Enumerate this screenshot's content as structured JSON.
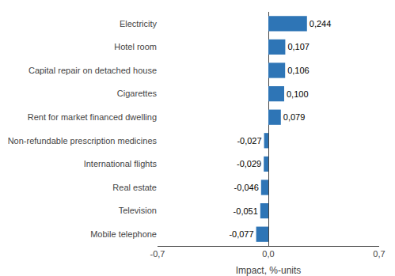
{
  "chart_data": {
    "type": "bar",
    "orientation": "horizontal",
    "categories": [
      "Mobile telephone",
      "Television",
      "Real estate",
      "International flights",
      "Non-refundable prescription medicines",
      "Rent for market financed dwelling",
      "Cigarettes",
      "Capital repair on detached house",
      "Hotel room",
      "Electricity"
    ],
    "values": [
      -0.077,
      -0.051,
      -0.046,
      -0.029,
      -0.027,
      0.079,
      0.1,
      0.106,
      0.107,
      0.244
    ],
    "value_labels": [
      "-0,077",
      "-0,051",
      "-0,046",
      "-0,029",
      "-0,027",
      "0,079",
      "0,100",
      "0,106",
      "0,107",
      "0,244"
    ],
    "data_labels": true,
    "color": "#2E75B6",
    "xlabel": "Impact, %-units",
    "xlim": [
      -0.7,
      0.7
    ],
    "xticks": [
      {
        "value": -0.7,
        "label": "-0,7"
      },
      {
        "value": 0.0,
        "label": "0,0"
      },
      {
        "value": 0.7,
        "label": "0,7"
      }
    ],
    "grid": true
  }
}
